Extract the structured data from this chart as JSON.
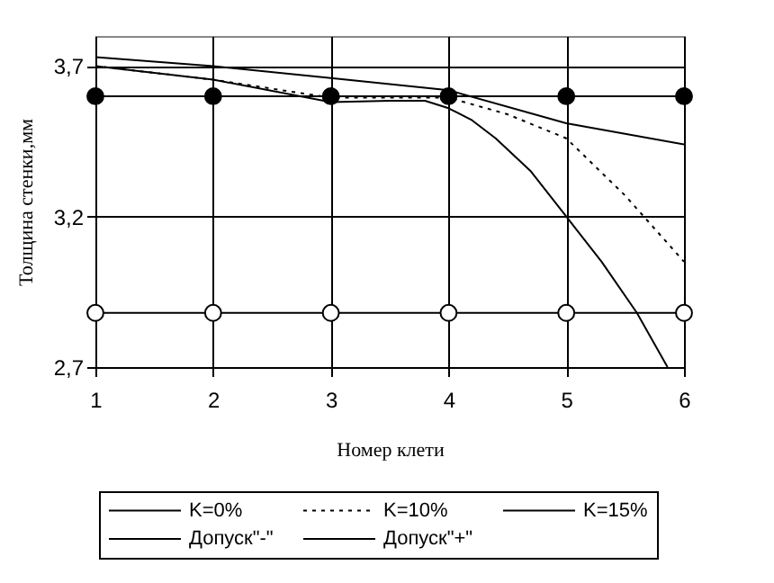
{
  "chart_data": {
    "type": "line",
    "xlabel": "Номер клети",
    "ylabel": "Толщина стенки,мм",
    "xlim": [
      1,
      6
    ],
    "xticks": [
      1,
      2,
      3,
      4,
      5,
      6
    ],
    "ylim": [
      2.7,
      3.8
    ],
    "yticks": [
      {
        "value": 2.7,
        "label": "2,7"
      },
      {
        "value": 3.2,
        "label": "3,2"
      },
      {
        "value": 3.7,
        "label": "3,7"
      }
    ],
    "grid": true,
    "legend": "bottom",
    "series": [
      {
        "name": "K=0%",
        "color": "#000000",
        "line_style": "solid",
        "x": [
          1,
          2,
          3,
          4,
          5,
          6
        ],
        "values": [
          3.73,
          3.7,
          3.66,
          3.62,
          3.51,
          3.44
        ]
      },
      {
        "name": "K=10%",
        "color": "#000000",
        "line_style": "dotted",
        "x": [
          1,
          2,
          3,
          4,
          4.5,
          5,
          5.5,
          6
        ],
        "values": [
          3.7,
          3.655,
          3.595,
          3.595,
          3.54,
          3.46,
          3.27,
          3.05
        ]
      },
      {
        "name": "K=15%",
        "color": "#000000",
        "line_style": "solid",
        "x": [
          1,
          2,
          3,
          3.5,
          3.8,
          4,
          4.2,
          4.4,
          4.7,
          5,
          5.3,
          5.6,
          5.86
        ],
        "values": [
          3.7,
          3.655,
          3.58,
          3.585,
          3.585,
          3.56,
          3.52,
          3.46,
          3.35,
          3.2,
          3.05,
          2.88,
          2.7
        ]
      },
      {
        "name": "Допуск\"-\"",
        "color": "#000000",
        "line_style": "solid",
        "marker": "circle-open",
        "x": [
          1,
          2,
          3,
          4,
          5,
          6
        ],
        "values": [
          2.88,
          2.88,
          2.88,
          2.88,
          2.88,
          2.88
        ]
      },
      {
        "name": "Допуск\"+\"",
        "color": "#000000",
        "line_style": "solid",
        "marker": "circle",
        "x": [
          1,
          2,
          3,
          4,
          5,
          6
        ],
        "values": [
          3.6,
          3.6,
          3.6,
          3.6,
          3.6,
          3.6
        ]
      }
    ]
  }
}
